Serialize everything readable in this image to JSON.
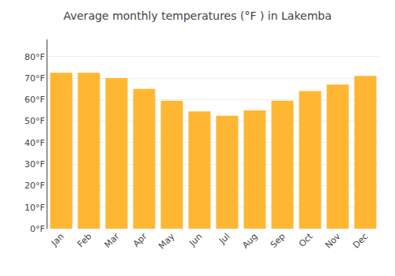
{
  "chart_data": {
    "type": "bar",
    "title": "Average monthly temperatures (°F ) in Lakemba",
    "categories": [
      "Jan",
      "Feb",
      "Mar",
      "Apr",
      "May",
      "Jun",
      "Jul",
      "Aug",
      "Sep",
      "Oct",
      "Nov",
      "Dec"
    ],
    "values": [
      72.5,
      72.5,
      70,
      65,
      59.5,
      54.5,
      52.5,
      55,
      59.5,
      64,
      67,
      71
    ],
    "color": "#FFB733",
    "ylim": [
      0,
      88
    ],
    "yticks": [
      {
        "value": 0,
        "label": "0°F"
      },
      {
        "value": 10,
        "label": "10°F"
      },
      {
        "value": 20,
        "label": "20°F"
      },
      {
        "value": 30,
        "label": "30°F"
      },
      {
        "value": 40,
        "label": "40°F"
      },
      {
        "value": 50,
        "label": "50°F"
      },
      {
        "value": 60,
        "label": "60°F"
      },
      {
        "value": 70,
        "label": "70°F"
      },
      {
        "value": 80,
        "label": "80°F"
      }
    ],
    "grid": true
  }
}
